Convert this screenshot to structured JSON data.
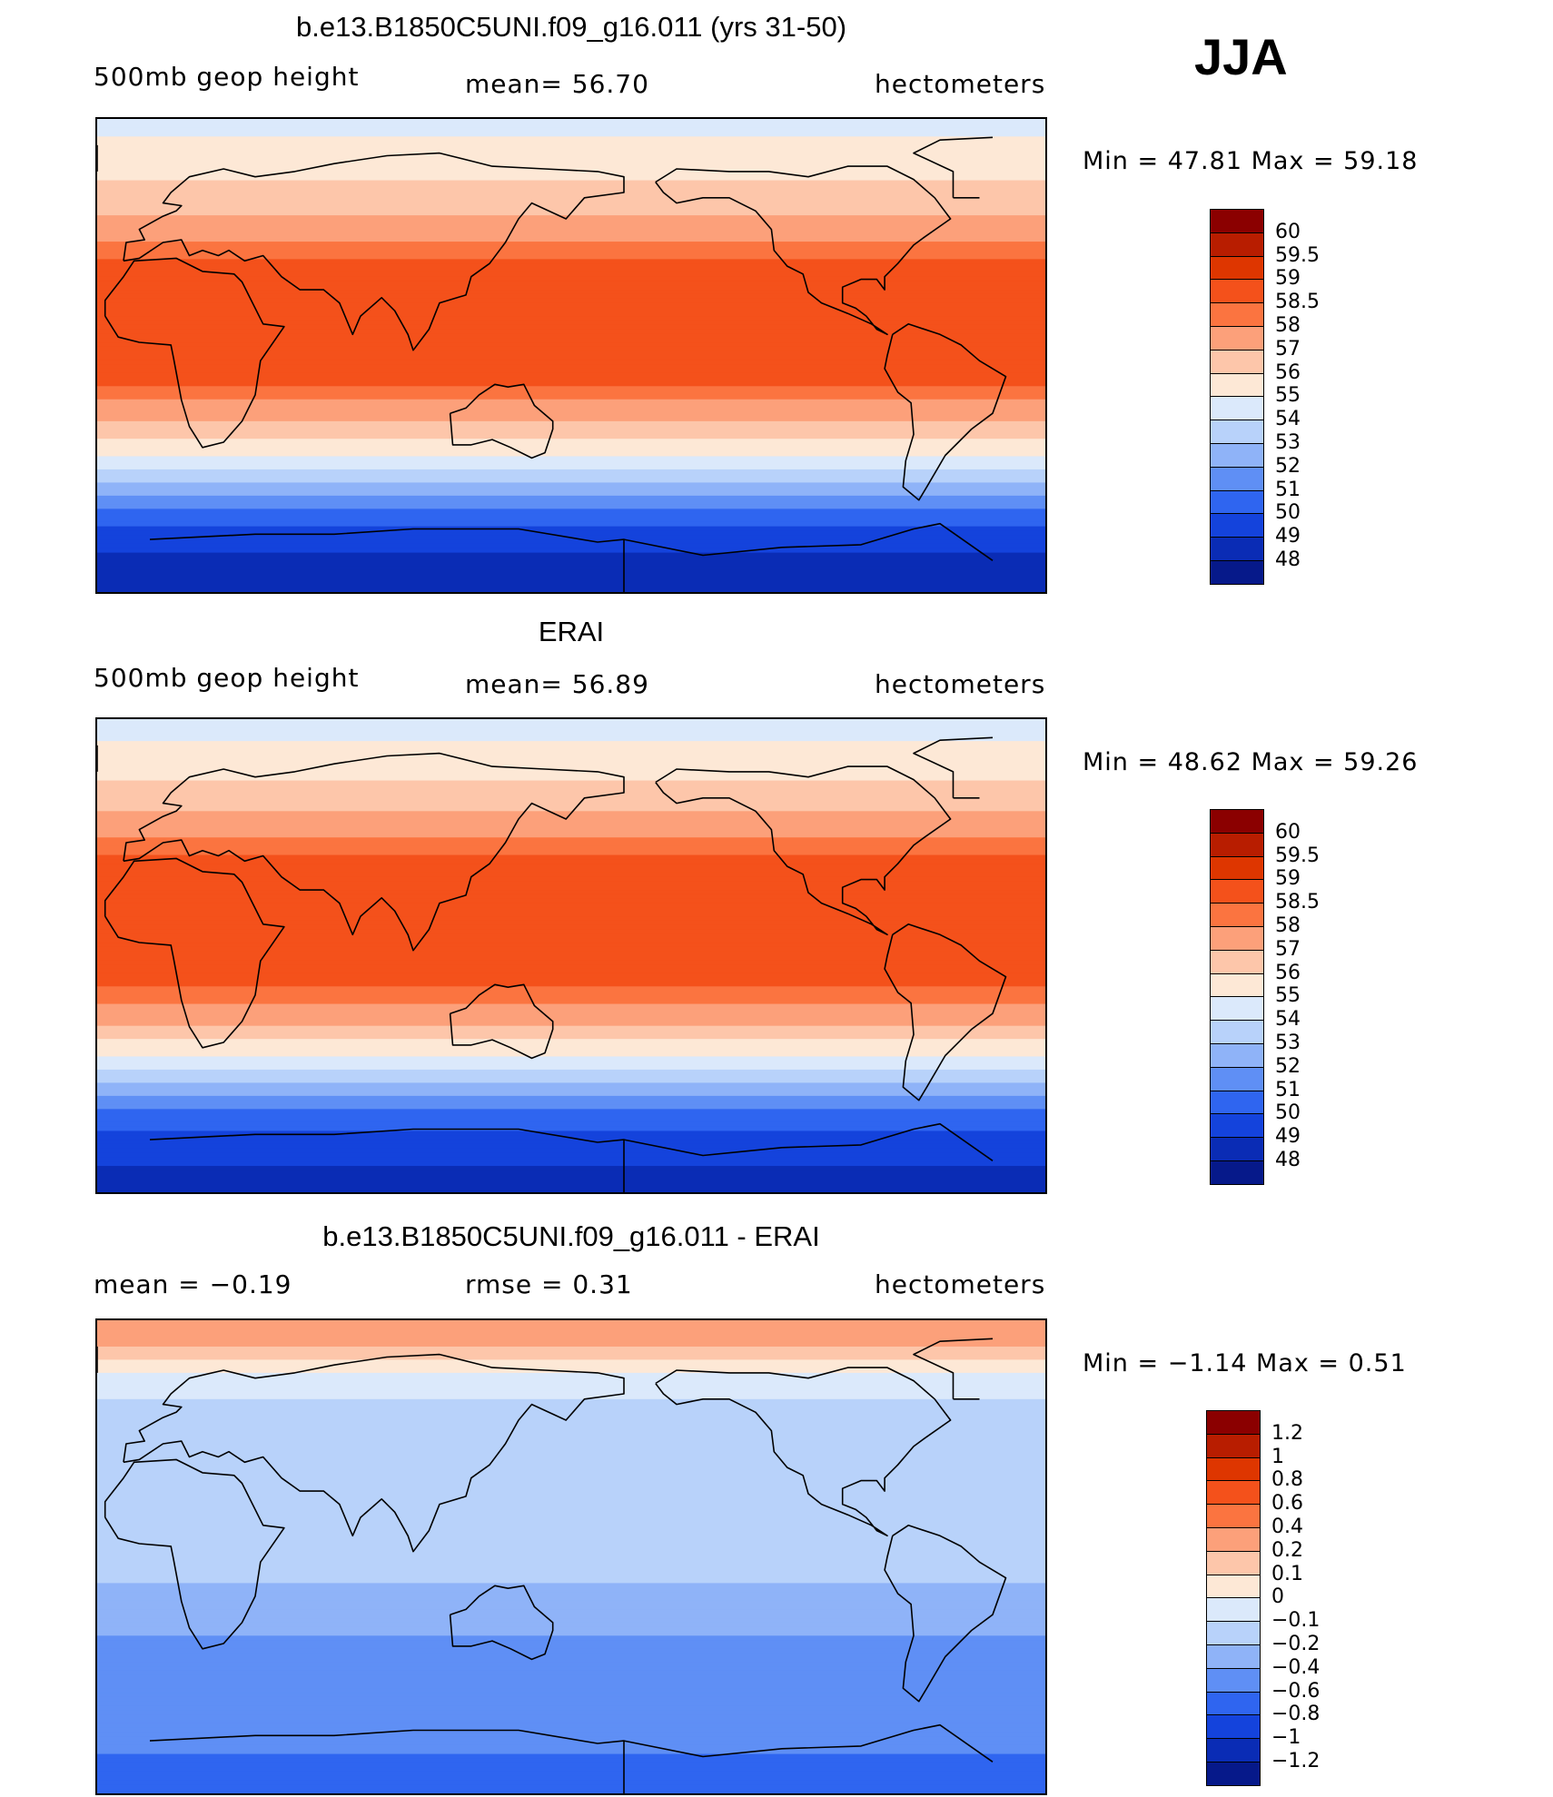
{
  "season": "JJA",
  "panels": [
    {
      "title": "b.e13.B1850C5UNI.f09_g16.011 (yrs 31-50)",
      "left_label": "500mb geop height",
      "center_label": "mean=   56.70",
      "right_label": "hectometers",
      "min_max": "Min =   47.81  Max =   59.18",
      "colorbar": {
        "labels": [
          "60",
          "59.5",
          "59",
          "58.5",
          "58",
          "57",
          "56",
          "55",
          "54",
          "53",
          "52",
          "51",
          "50",
          "49",
          "48"
        ],
        "colors": [
          "#8b0000",
          "#b81d00",
          "#de3600",
          "#f4511b",
          "#fb7440",
          "#fca07a",
          "#fdc6aa",
          "#fde8d6",
          "#dbe9fb",
          "#b8d2fa",
          "#8fb3f8",
          "#5f8ff5",
          "#2f65f0",
          "#1443dc",
          "#0a2cb5",
          "#06198a"
        ]
      }
    },
    {
      "title": "ERAI",
      "left_label": "500mb geop height",
      "center_label": "mean=   56.89",
      "right_label": "hectometers",
      "min_max": "Min =   48.62  Max =   59.26",
      "colorbar": {
        "labels": [
          "60",
          "59.5",
          "59",
          "58.5",
          "58",
          "57",
          "56",
          "55",
          "54",
          "53",
          "52",
          "51",
          "50",
          "49",
          "48"
        ],
        "colors": [
          "#8b0000",
          "#b81d00",
          "#de3600",
          "#f4511b",
          "#fb7440",
          "#fca07a",
          "#fdc6aa",
          "#fde8d6",
          "#dbe9fb",
          "#b8d2fa",
          "#8fb3f8",
          "#5f8ff5",
          "#2f65f0",
          "#1443dc",
          "#0a2cb5",
          "#06198a"
        ]
      }
    },
    {
      "title": "b.e13.B1850C5UNI.f09_g16.011 - ERAI",
      "left_label": "mean =   −0.19",
      "center_label": "rmse =    0.31",
      "right_label": "hectometers",
      "min_max": "Min =   −1.14  Max =    0.51",
      "colorbar": {
        "labels": [
          "1.2",
          "1",
          "0.8",
          "0.6",
          "0.4",
          "0.2",
          "0.1",
          "0",
          "−0.1",
          "−0.2",
          "−0.4",
          "−0.6",
          "−0.8",
          "−1",
          "−1.2"
        ],
        "colors": [
          "#8b0000",
          "#b81d00",
          "#de3600",
          "#f4511b",
          "#fb7440",
          "#fca07a",
          "#fdc6aa",
          "#fde8d6",
          "#dbe9fb",
          "#b8d2fa",
          "#8fb3f8",
          "#5f8ff5",
          "#2f65f0",
          "#1443dc",
          "#0a2cb5",
          "#06198a"
        ]
      }
    }
  ],
  "chart_data": [
    {
      "type": "heatmap",
      "title": "b.e13.B1850C5UNI.f09_g16.011 (yrs 31-50)",
      "variable": "500mb geop height",
      "units": "hectometers",
      "mean": 56.7,
      "min": 47.81,
      "max": 59.18,
      "levels": [
        48,
        49,
        50,
        51,
        52,
        53,
        54,
        55,
        56,
        57,
        58,
        58.5,
        59,
        59.5,
        60
      ],
      "zonal_bands": [
        {
          "lat_deg": 90,
          "value": 54.5
        },
        {
          "lat_deg": 80,
          "value": 55.3
        },
        {
          "lat_deg": 70,
          "value": 55.8
        },
        {
          "lat_deg": 60,
          "value": 56.5
        },
        {
          "lat_deg": 50,
          "value": 57.3
        },
        {
          "lat_deg": 40,
          "value": 58.3
        },
        {
          "lat_deg": 30,
          "value": 58.8
        },
        {
          "lat_deg": 20,
          "value": 58.7
        },
        {
          "lat_deg": 10,
          "value": 58.6
        },
        {
          "lat_deg": 0,
          "value": 58.7
        },
        {
          "lat_deg": -10,
          "value": 58.6
        },
        {
          "lat_deg": -20,
          "value": 57.7
        },
        {
          "lat_deg": -30,
          "value": 56.3
        },
        {
          "lat_deg": -40,
          "value": 54.6
        },
        {
          "lat_deg": -50,
          "value": 52.5
        },
        {
          "lat_deg": -60,
          "value": 50.6
        },
        {
          "lat_deg": -70,
          "value": 49.5
        },
        {
          "lat_deg": -80,
          "value": 48.6
        },
        {
          "lat_deg": -90,
          "value": 48.4
        }
      ]
    },
    {
      "type": "heatmap",
      "title": "ERAI",
      "variable": "500mb geop height",
      "units": "hectometers",
      "mean": 56.89,
      "min": 48.62,
      "max": 59.26,
      "levels": [
        48,
        49,
        50,
        51,
        52,
        53,
        54,
        55,
        56,
        57,
        58,
        58.5,
        59,
        59.5,
        60
      ],
      "zonal_bands": [
        {
          "lat_deg": 90,
          "value": 54.6
        },
        {
          "lat_deg": 80,
          "value": 55.1
        },
        {
          "lat_deg": 70,
          "value": 55.7
        },
        {
          "lat_deg": 60,
          "value": 56.6
        },
        {
          "lat_deg": 50,
          "value": 57.5
        },
        {
          "lat_deg": 40,
          "value": 58.4
        },
        {
          "lat_deg": 30,
          "value": 58.8
        },
        {
          "lat_deg": 20,
          "value": 58.8
        },
        {
          "lat_deg": 10,
          "value": 58.7
        },
        {
          "lat_deg": 0,
          "value": 58.7
        },
        {
          "lat_deg": -10,
          "value": 58.6
        },
        {
          "lat_deg": -20,
          "value": 57.9
        },
        {
          "lat_deg": -30,
          "value": 56.4
        },
        {
          "lat_deg": -40,
          "value": 54.7
        },
        {
          "lat_deg": -50,
          "value": 52.8
        },
        {
          "lat_deg": -60,
          "value": 50.8
        },
        {
          "lat_deg": -70,
          "value": 49.7
        },
        {
          "lat_deg": -80,
          "value": 49.0
        },
        {
          "lat_deg": -90,
          "value": 48.9
        }
      ]
    },
    {
      "type": "heatmap",
      "title": "b.e13.B1850C5UNI.f09_g16.011 - ERAI",
      "variable": "500mb geop height difference",
      "units": "hectometers",
      "mean": -0.19,
      "rmse": 0.31,
      "min": -1.14,
      "max": 0.51,
      "levels": [
        -1.2,
        -1,
        -0.8,
        -0.6,
        -0.4,
        -0.2,
        -0.1,
        0,
        0.1,
        0.2,
        0.4,
        0.6,
        0.8,
        1,
        1.2
      ],
      "zonal_bands": [
        {
          "lat_deg": 90,
          "value": 0.3
        },
        {
          "lat_deg": 80,
          "value": 0.2
        },
        {
          "lat_deg": 70,
          "value": 0.0
        },
        {
          "lat_deg": 60,
          "value": -0.1
        },
        {
          "lat_deg": 50,
          "value": -0.15
        },
        {
          "lat_deg": 40,
          "value": -0.2
        },
        {
          "lat_deg": 30,
          "value": -0.15
        },
        {
          "lat_deg": 20,
          "value": -0.15
        },
        {
          "lat_deg": 10,
          "value": -0.15
        },
        {
          "lat_deg": 0,
          "value": -0.15
        },
        {
          "lat_deg": -10,
          "value": -0.2
        },
        {
          "lat_deg": -20,
          "value": -0.3
        },
        {
          "lat_deg": -30,
          "value": -0.4
        },
        {
          "lat_deg": -40,
          "value": -0.5
        },
        {
          "lat_deg": -50,
          "value": -0.45
        },
        {
          "lat_deg": -60,
          "value": -0.4
        },
        {
          "lat_deg": -70,
          "value": -0.55
        },
        {
          "lat_deg": -80,
          "value": -0.65
        },
        {
          "lat_deg": -90,
          "value": -0.7
        }
      ]
    }
  ]
}
